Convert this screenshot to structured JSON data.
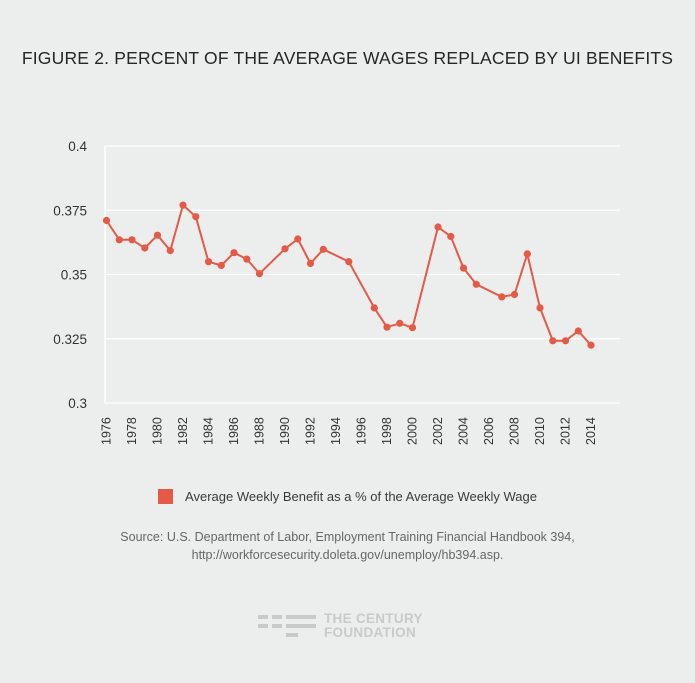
{
  "chart_data": {
    "type": "line",
    "title": "FIGURE 2. PERCENT OF THE AVERAGE WAGES REPLACED BY UI BENEFITS",
    "xlabel": "",
    "ylabel": "",
    "ylim": [
      0.3,
      0.4
    ],
    "yticks": [
      "0.4",
      "0.375",
      "0.35",
      "0.325",
      "0.3"
    ],
    "xtick_labels": [
      "1976",
      "1978",
      "1980",
      "1982",
      "1984",
      "1986",
      "1988",
      "1990",
      "1992",
      "1994",
      "1996",
      "1998",
      "2000",
      "2002",
      "2004",
      "2006",
      "2008",
      "2010",
      "2012",
      "2014"
    ],
    "series": [
      {
        "name": "Average Weekly Benefit as a % of the Average Weekly Wage",
        "color": "#e55a47",
        "x": [
          1976,
          1977,
          1978,
          1979,
          1980,
          1981,
          1982,
          1983,
          1984,
          1985,
          1986,
          1987,
          1988,
          1990,
          1991,
          1992,
          1993,
          1995,
          1997,
          1998,
          1999,
          2000,
          2002,
          2003,
          2004,
          2005,
          2007,
          2008,
          2009,
          2010,
          2011,
          2012,
          2013,
          2014
        ],
        "values": [
          0.371,
          0.3635,
          0.3635,
          0.3603,
          0.3653,
          0.3593,
          0.377,
          0.3725,
          0.355,
          0.3535,
          0.3585,
          0.356,
          0.3503,
          0.36,
          0.3638,
          0.3543,
          0.3598,
          0.355,
          0.337,
          0.3295,
          0.331,
          0.3293,
          0.3685,
          0.3648,
          0.3525,
          0.3462,
          0.3413,
          0.3422,
          0.358,
          0.337,
          0.3242,
          0.3242,
          0.328,
          0.3225
        ]
      }
    ]
  },
  "legend": {
    "label": "Average Weekly Benefit as a % of the Average Weekly Wage"
  },
  "source": {
    "line1": "Source: U.S. Department of Labor, Employment Training Financial Handbook 394,",
    "line2": "http://workforcesecurity.doleta.gov/unemploy/hb394.asp."
  },
  "logo": {
    "line1": "THE CENTURY",
    "line2": "FOUNDATION"
  }
}
